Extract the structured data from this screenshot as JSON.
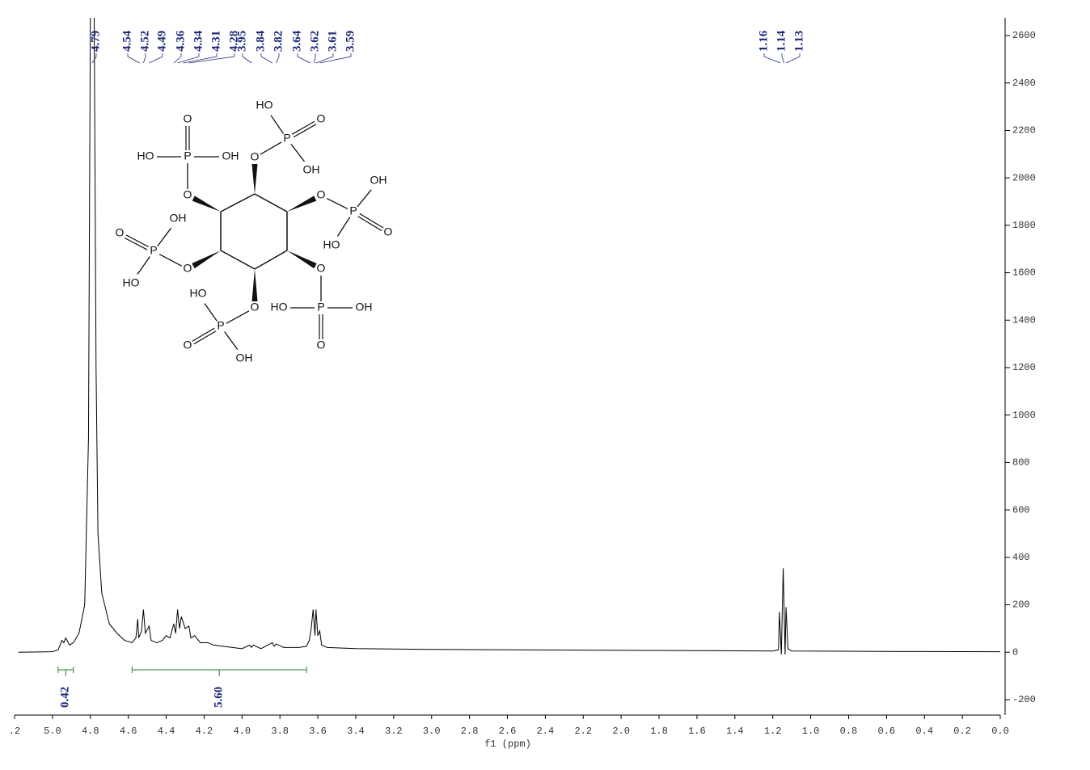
{
  "chart_data": {
    "type": "line",
    "x_label": "f1 (ppm)",
    "xlim": [
      5.2,
      0
    ],
    "ylim": [
      -265,
      2675
    ],
    "xticks": [
      {
        "value": 5.2,
        "label": ".2"
      },
      {
        "value": 5.0,
        "label": "5.0"
      },
      4.8,
      4.6,
      4.4,
      4.2,
      {
        "value": 4.0,
        "label": "4.0"
      },
      3.8,
      3.6,
      3.4,
      3.2,
      {
        "value": 3.0,
        "label": "3.0"
      },
      2.8,
      2.6,
      2.4,
      2.2,
      {
        "value": 2.0,
        "label": "2.0"
      },
      1.8,
      1.6,
      1.4,
      1.2,
      {
        "value": 1.0,
        "label": "1.0"
      },
      0.8,
      0.6,
      0.4,
      0.2,
      {
        "value": 0,
        "label": "0.0"
      }
    ],
    "yticks": [
      -200,
      0,
      200,
      400,
      600,
      800,
      1000,
      1200,
      1400,
      1600,
      1800,
      2000,
      2200,
      2400,
      2600
    ],
    "color": "#000000",
    "x": [
      5.18,
      5.0,
      4.97,
      4.95,
      4.94,
      4.93,
      4.91,
      4.89,
      4.86,
      4.83,
      4.81,
      4.8,
      4.79,
      4.78,
      4.77,
      4.76,
      4.74,
      4.7,
      4.66,
      4.62,
      4.58,
      4.56,
      4.55,
      4.545,
      4.53,
      4.52,
      4.51,
      4.49,
      4.48,
      4.45,
      4.42,
      4.4,
      4.38,
      4.36,
      4.35,
      4.34,
      4.33,
      4.32,
      4.3,
      4.28,
      4.27,
      4.25,
      4.22,
      4.18,
      4.15,
      4.1,
      4.05,
      4.0,
      3.96,
      3.95,
      3.94,
      3.9,
      3.84,
      3.83,
      3.82,
      3.78,
      3.7,
      3.66,
      3.645,
      3.635,
      3.625,
      3.615,
      3.61,
      3.6,
      3.59,
      3.58,
      3.55,
      3.4,
      3.0,
      2.0,
      1.2,
      1.17,
      1.165,
      1.155,
      1.145,
      1.135,
      1.13,
      1.12,
      1.1,
      0.5,
      0.0
    ],
    "values": [
      0,
      2,
      10,
      50,
      40,
      60,
      30,
      40,
      80,
      200,
      900,
      2700,
      2700,
      2700,
      1200,
      500,
      250,
      120,
      80,
      50,
      40,
      60,
      140,
      60,
      90,
      180,
      80,
      110,
      50,
      40,
      50,
      70,
      60,
      120,
      80,
      180,
      100,
      150,
      100,
      110,
      60,
      70,
      40,
      40,
      30,
      25,
      20,
      15,
      30,
      20,
      30,
      15,
      40,
      25,
      35,
      20,
      20,
      25,
      50,
      100,
      180,
      70,
      180,
      70,
      90,
      30,
      20,
      15,
      12,
      8,
      5,
      10,
      170,
      -10,
      354,
      -10,
      190,
      15,
      5,
      3,
      2
    ],
    "peak_labels": [
      4.79,
      4.54,
      4.52,
      4.49,
      4.36,
      4.34,
      4.31,
      4.28,
      3.95,
      3.84,
      3.82,
      3.64,
      3.62,
      3.61,
      3.59,
      1.16,
      1.14,
      1.13
    ],
    "integrals": [
      {
        "from": 4.97,
        "to": 4.89,
        "value": 0.42,
        "label": "0.42"
      },
      {
        "from": 4.58,
        "to": 3.66,
        "value": 5.6,
        "label": "5.60"
      }
    ]
  },
  "structure": {
    "labels": [
      "O",
      "P",
      "O",
      "HO",
      "OH",
      "O",
      "P",
      "O",
      "OH",
      "HO",
      "O",
      "P",
      "O",
      "HO",
      "OH",
      "O",
      "P",
      "O",
      "HO",
      "OH",
      "O",
      "P",
      "O",
      "OH",
      "HO",
      "O",
      "P",
      "O",
      "HO",
      "OH"
    ]
  }
}
